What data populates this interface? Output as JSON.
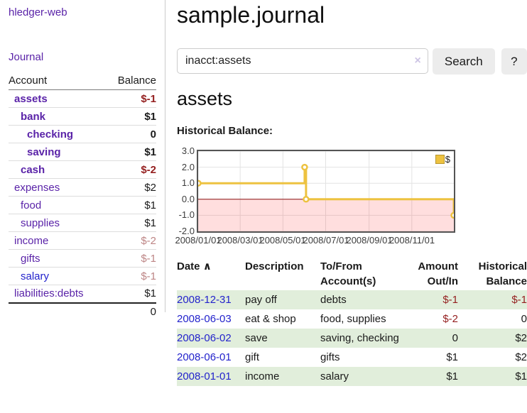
{
  "colors": {
    "link_purple": "#5a23a8",
    "link_blue": "#2323cc",
    "negative_strong": "#941f1f",
    "negative_muted": "#bd8585",
    "row_green": "#e1eedb",
    "series_yellow": "#edc240",
    "zero_line": "#8f1515",
    "button_gray": "#ececec"
  },
  "sidebar": {
    "brand": "hledger-web",
    "nav_journal": "Journal",
    "table": {
      "headers": {
        "account": "Account",
        "balance": "Balance"
      },
      "accounts": [
        {
          "name": "assets",
          "balance": "$-1"
        },
        {
          "name": "bank",
          "balance": "$1"
        },
        {
          "name": "checking",
          "balance": "0"
        },
        {
          "name": "saving",
          "balance": "$1"
        },
        {
          "name": "cash",
          "balance": "$-2"
        },
        {
          "name": "expenses",
          "balance": "$2"
        },
        {
          "name": "food",
          "balance": "$1"
        },
        {
          "name": "supplies",
          "balance": "$1"
        },
        {
          "name": "income",
          "balance": "$-2"
        },
        {
          "name": "gifts",
          "balance": "$-1"
        },
        {
          "name": "salary",
          "balance": "$-1"
        },
        {
          "name": "liabilities:debts",
          "balance": "$1"
        }
      ],
      "total": "0"
    }
  },
  "main": {
    "title": "sample.journal",
    "search": {
      "value": "inacct:assets",
      "clear_icon": "×",
      "button_label": "Search",
      "help_label": "?"
    },
    "account_heading": "assets",
    "chart_title": "Historical Balance:",
    "register": {
      "headers": {
        "date": "Date",
        "sort_icon": "∧",
        "description": "Description",
        "tofrom": "To/From Account(s)",
        "amount": "Amount Out/In",
        "balance": "Historical Balance"
      },
      "rows": [
        {
          "date": "2008-12-31",
          "description": "pay off",
          "accounts": "debts",
          "amount": "$-1",
          "balance": "$-1"
        },
        {
          "date": "2008-06-03",
          "description": "eat & shop",
          "accounts": "food, supplies",
          "amount": "$-2",
          "balance": "0"
        },
        {
          "date": "2008-06-02",
          "description": "save",
          "accounts": "saving, checking",
          "amount": "0",
          "balance": "$2"
        },
        {
          "date": "2008-06-01",
          "description": "gift",
          "accounts": "gifts",
          "amount": "$1",
          "balance": "$2"
        },
        {
          "date": "2008-01-01",
          "description": "income",
          "accounts": "salary",
          "amount": "$1",
          "balance": "$1"
        }
      ]
    }
  },
  "chart_data": {
    "type": "line",
    "title": "Historical Balance:",
    "x_range": [
      "2008-01-01",
      "2008-12-31"
    ],
    "ylim": [
      -2,
      3
    ],
    "y_ticks": [
      3.0,
      2.0,
      1.0,
      0.0,
      -1.0,
      -2.0
    ],
    "y_tick_labels": [
      "3.0",
      "2.0",
      "1.0",
      "0.0",
      "-1.0",
      "-2.0"
    ],
    "x_ticks": [
      "2008-01-01",
      "2008-03-01",
      "2008-05-01",
      "2008-07-01",
      "2008-09-01",
      "2008-11-01"
    ],
    "x_tick_labels": [
      "2008/01/01",
      "2008/03/01",
      "2008/05/01",
      "2008/07/01",
      "2008/09/01",
      "2008/11/01"
    ],
    "grid": true,
    "legend_position": "top-right",
    "negative_region": true,
    "zero_line_color": "#8f1515",
    "series": [
      {
        "name": "$",
        "color": "#edc240",
        "step": true,
        "points": [
          {
            "x": "2008-01-01",
            "y": 1
          },
          {
            "x": "2008-06-01",
            "y": 2
          },
          {
            "x": "2008-06-03",
            "y": 0
          },
          {
            "x": "2008-12-31",
            "y": -1
          }
        ]
      }
    ]
  }
}
